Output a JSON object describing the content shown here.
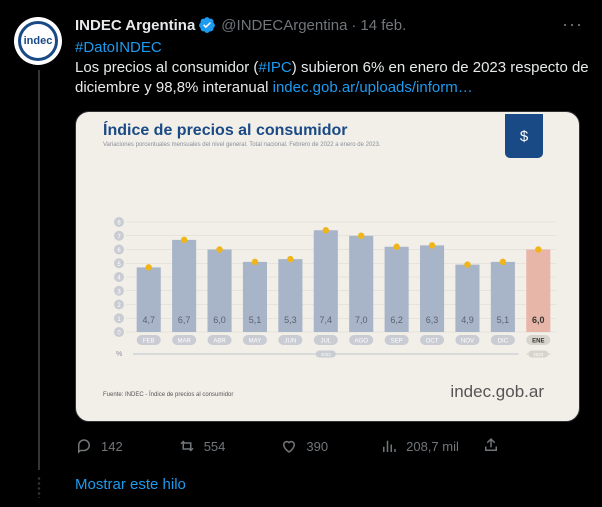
{
  "author": {
    "name": "INDEC Argentina",
    "handle": "@INDECArgentina",
    "separator": "·",
    "date": "14 feb.",
    "avatar_text": "indec"
  },
  "tweet": {
    "hashtag_line": "#DatoINDEC",
    "text_before": "Los precios al consumidor (",
    "ipc": "#IPC",
    "text_after": ") subieron 6% en enero de 2023 respecto de diciembre y 98,8% interanual ",
    "link": "indec.gob.ar/uploads/inform…"
  },
  "card": {
    "title": "Índice de precios al consumidor",
    "subtitle": "Variaciones porcentuales mensuales del nivel general. Total nacional. Febrero de 2022 a enero de 2023.",
    "footer": "Fuente: INDEC - Índice de precios al consumidor",
    "brand_main": "indec",
    "brand_suffix": ".gob.ar",
    "badge_icon": "$"
  },
  "chart_data": {
    "type": "bar",
    "categories": [
      "FEB",
      "MAR",
      "ABR",
      "MAY",
      "JUN",
      "JUL",
      "AGO",
      "SEP",
      "OCT",
      "NOV",
      "DIC",
      "ENE"
    ],
    "values": [
      4.7,
      6.7,
      6.0,
      5.1,
      5.3,
      7.4,
      7.0,
      6.2,
      6.3,
      4.9,
      5.1,
      6.0
    ],
    "value_labels": [
      "4,7",
      "6,7",
      "6,0",
      "5,1",
      "5,3",
      "7,4",
      "7,0",
      "6,2",
      "6,3",
      "4,9",
      "5,1",
      "6,0"
    ],
    "year_labels": [
      "2022",
      "2023"
    ],
    "y_ticks": [
      "0",
      "1",
      "2",
      "3",
      "4",
      "5",
      "6",
      "7",
      "8"
    ],
    "ylim": [
      0,
      8
    ],
    "yunit": "%",
    "colors": {
      "bar": "#a8b4c8",
      "highlight": "#e8b6a8",
      "marker": "#f0b51a",
      "text": "#5a6270"
    }
  },
  "actions": {
    "replies": "142",
    "retweets": "554",
    "likes": "390",
    "views": "208,7 mil"
  },
  "show_thread": "Mostrar este hilo"
}
